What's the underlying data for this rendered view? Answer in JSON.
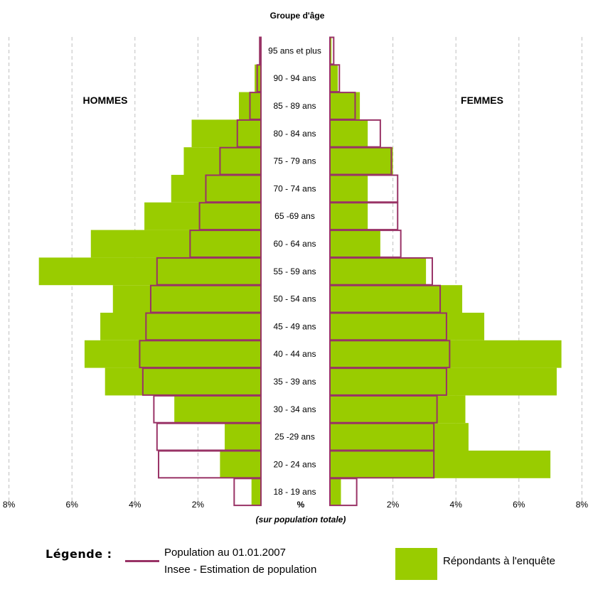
{
  "colors": {
    "population": "#993366",
    "respondents": "#99cc00",
    "grid": "#bfbfbf"
  },
  "chart_data": {
    "type": "bar",
    "title": "Groupe d'âge",
    "xlabel": "%",
    "xlabel_sub": "(sur population totale)",
    "left_label": "HOMMES",
    "right_label": "FEMMES",
    "xlim": [
      0,
      8
    ],
    "x_tick_labels_left": [
      "8%",
      "6%",
      "4%",
      "2%"
    ],
    "x_tick_labels_right": [
      "2%",
      "4%",
      "6%",
      "8%"
    ],
    "categories": [
      "95 ans et plus",
      "90 - 94 ans",
      "85 - 89 ans",
      "80 - 84 ans",
      "75 - 79 ans",
      "70 - 74 ans",
      "65 -69 ans",
      "60 - 64 ans",
      "55 - 59 ans",
      "50 - 54 ans",
      "45 - 49 ans",
      "40 - 44 ans",
      "35 - 39 ans",
      "30 - 34 ans",
      "25 -29 ans",
      "20 - 24 ans",
      "18 - 19 ans"
    ],
    "series": [
      {
        "name": "Répondants à l'enquête",
        "side": "hommes",
        "values": [
          0.05,
          0.2,
          0.7,
          2.2,
          2.45,
          2.85,
          3.7,
          5.4,
          7.05,
          4.7,
          5.1,
          5.6,
          4.95,
          2.75,
          1.15,
          1.3,
          0.3
        ]
      },
      {
        "name": "Population au 01.01.2007",
        "side": "hommes",
        "values": [
          0.04,
          0.12,
          0.35,
          0.75,
          1.3,
          1.75,
          1.95,
          2.25,
          3.3,
          3.5,
          3.65,
          3.85,
          3.75,
          3.4,
          3.3,
          3.25,
          0.85
        ]
      },
      {
        "name": "Répondants à l'enquête",
        "side": "femmes",
        "values": [
          0.05,
          0.25,
          0.95,
          1.2,
          2.0,
          1.2,
          1.2,
          1.6,
          3.05,
          4.2,
          4.9,
          7.35,
          7.2,
          4.3,
          4.4,
          7.0,
          0.35
        ]
      },
      {
        "name": "Population au 01.01.2007",
        "side": "femmes",
        "values": [
          0.12,
          0.3,
          0.8,
          1.6,
          1.95,
          2.15,
          2.15,
          2.25,
          3.25,
          3.5,
          3.7,
          3.8,
          3.7,
          3.4,
          3.3,
          3.3,
          0.85
        ]
      }
    ],
    "grid": true
  },
  "legend": {
    "title": "Légende :",
    "population_line1": "Population au 01.01.2007",
    "population_line2": "Insee - Estimation de population",
    "respondents": "Répondants à l'enquête"
  }
}
